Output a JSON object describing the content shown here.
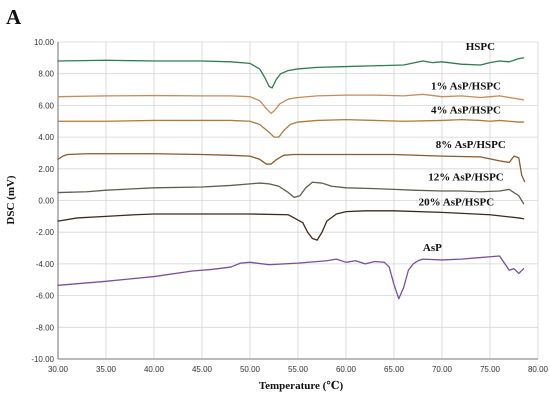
{
  "panel_label": "A",
  "chart_data": {
    "type": "line",
    "title": "",
    "xlabel": "Temperature (℃)",
    "ylabel": "DSC (mV)",
    "xlim": [
      30,
      80
    ],
    "ylim": [
      -10,
      10
    ],
    "grid": true,
    "x_ticks": [
      "30.00",
      "35.00",
      "40.00",
      "45.00",
      "50.00",
      "55.00",
      "60.00",
      "65.00",
      "70.00",
      "75.00",
      "80.00"
    ],
    "y_ticks": [
      "-10.00",
      "-8.00",
      "-6.00",
      "-4.00",
      "-2.00",
      "0.00",
      "2.00",
      "4.00",
      "6.00",
      "8.00",
      "10.00"
    ],
    "series": [
      {
        "name": "HSPC",
        "color": "#2e7d4f",
        "x": [
          30,
          35,
          40,
          45,
          48,
          50,
          51,
          51.5,
          52,
          52.3,
          52.7,
          53.2,
          54,
          55,
          57,
          60,
          63,
          66,
          68,
          69,
          70,
          72,
          74,
          75,
          76,
          77,
          78,
          78.5
        ],
        "y": [
          8.8,
          8.85,
          8.8,
          8.8,
          8.75,
          8.65,
          8.3,
          7.8,
          7.2,
          7.1,
          7.6,
          8.0,
          8.2,
          8.3,
          8.4,
          8.45,
          8.5,
          8.55,
          8.8,
          8.7,
          8.75,
          8.6,
          8.55,
          8.7,
          8.8,
          8.75,
          8.95,
          9.0
        ]
      },
      {
        "name": "1% AsP/HSPC",
        "color": "#c98a5a",
        "x": [
          30,
          35,
          40,
          45,
          48,
          50,
          51,
          51.7,
          52.2,
          52.6,
          53.1,
          54,
          55,
          57,
          60,
          63,
          66,
          68,
          70,
          72,
          74,
          75,
          76,
          77,
          78,
          78.5
        ],
        "y": [
          6.55,
          6.6,
          6.62,
          6.6,
          6.6,
          6.55,
          6.3,
          5.8,
          5.5,
          5.7,
          6.1,
          6.4,
          6.5,
          6.6,
          6.65,
          6.65,
          6.6,
          6.7,
          6.55,
          6.6,
          6.5,
          6.55,
          6.6,
          6.5,
          6.4,
          6.35
        ]
      },
      {
        "name": "4% AsP/HSPC",
        "color": "#b07a3e",
        "x": [
          30,
          35,
          40,
          45,
          48,
          50,
          51,
          52,
          52.5,
          53,
          53.5,
          54.2,
          55,
          57,
          60,
          63,
          66,
          70,
          72,
          74,
          75,
          76,
          77,
          78,
          78.5
        ],
        "y": [
          5.0,
          5.0,
          5.05,
          5.05,
          5.05,
          5.0,
          4.8,
          4.3,
          4.0,
          4.0,
          4.4,
          4.8,
          4.95,
          5.05,
          5.1,
          5.05,
          5.0,
          5.05,
          5.1,
          5.05,
          5.0,
          5.05,
          5.0,
          4.95,
          4.95
        ]
      },
      {
        "name": "8% AsP/HSPC",
        "color": "#8b5a2b",
        "x": [
          30,
          30.5,
          31,
          33,
          35,
          40,
          45,
          48,
          50,
          51,
          51.7,
          52.2,
          52.8,
          53.5,
          54.5,
          56,
          60,
          65,
          70,
          74,
          76,
          77,
          77.5,
          78,
          78.3,
          78.6
        ],
        "y": [
          2.6,
          2.8,
          2.9,
          2.95,
          2.95,
          2.95,
          2.9,
          2.85,
          2.8,
          2.6,
          2.3,
          2.3,
          2.6,
          2.85,
          2.9,
          2.9,
          2.9,
          2.9,
          2.8,
          2.75,
          2.5,
          2.4,
          2.8,
          2.7,
          1.6,
          1.2
        ]
      },
      {
        "name": "12% AsP/HSPC",
        "color": "#5e5e4e",
        "x": [
          30,
          33,
          35,
          40,
          45,
          48,
          50,
          51,
          52,
          53,
          54,
          54.6,
          55.2,
          55.8,
          56.5,
          57.5,
          58.5,
          60,
          63,
          65,
          67,
          70,
          72,
          74,
          76,
          77,
          78,
          78.5
        ],
        "y": [
          0.5,
          0.55,
          0.65,
          0.8,
          0.85,
          0.95,
          1.05,
          1.1,
          1.05,
          0.9,
          0.5,
          0.2,
          0.3,
          0.8,
          1.15,
          1.1,
          0.9,
          0.8,
          0.75,
          0.7,
          0.65,
          0.6,
          0.6,
          0.55,
          0.6,
          0.7,
          0.3,
          -0.2
        ]
      },
      {
        "name": "20% AsP/HSPC",
        "color": "#3d2b1a",
        "x": [
          30,
          32,
          35,
          38,
          40,
          45,
          50,
          54,
          55.5,
          56,
          56.5,
          57,
          57.5,
          58,
          59,
          60,
          62,
          65,
          70,
          75,
          78,
          78.5
        ],
        "y": [
          -1.3,
          -1.1,
          -1.0,
          -0.9,
          -0.85,
          -0.85,
          -0.85,
          -0.9,
          -1.4,
          -2.0,
          -2.4,
          -2.5,
          -2.0,
          -1.3,
          -0.85,
          -0.7,
          -0.65,
          -0.65,
          -0.75,
          -0.9,
          -1.1,
          -1.15
        ]
      },
      {
        "name": "AsP",
        "color": "#7b4fa0",
        "x": [
          30,
          35,
          40,
          44,
          46,
          48,
          49,
          50,
          52,
          55,
          58,
          59,
          60,
          61,
          62,
          63,
          64,
          64.5,
          65,
          65.5,
          66,
          66.5,
          67,
          67.5,
          68,
          70,
          72,
          74,
          75,
          76,
          77,
          77.5,
          78,
          78.5
        ],
        "y": [
          -5.35,
          -5.1,
          -4.8,
          -4.45,
          -4.35,
          -4.2,
          -3.95,
          -3.9,
          -4.05,
          -3.95,
          -3.8,
          -3.7,
          -3.9,
          -3.8,
          -4.0,
          -3.85,
          -3.9,
          -4.2,
          -5.3,
          -6.2,
          -5.5,
          -4.4,
          -4.0,
          -3.8,
          -3.7,
          -3.75,
          -3.7,
          -3.6,
          -3.55,
          -3.5,
          -4.4,
          -4.3,
          -4.6,
          -4.3
        ]
      }
    ]
  }
}
